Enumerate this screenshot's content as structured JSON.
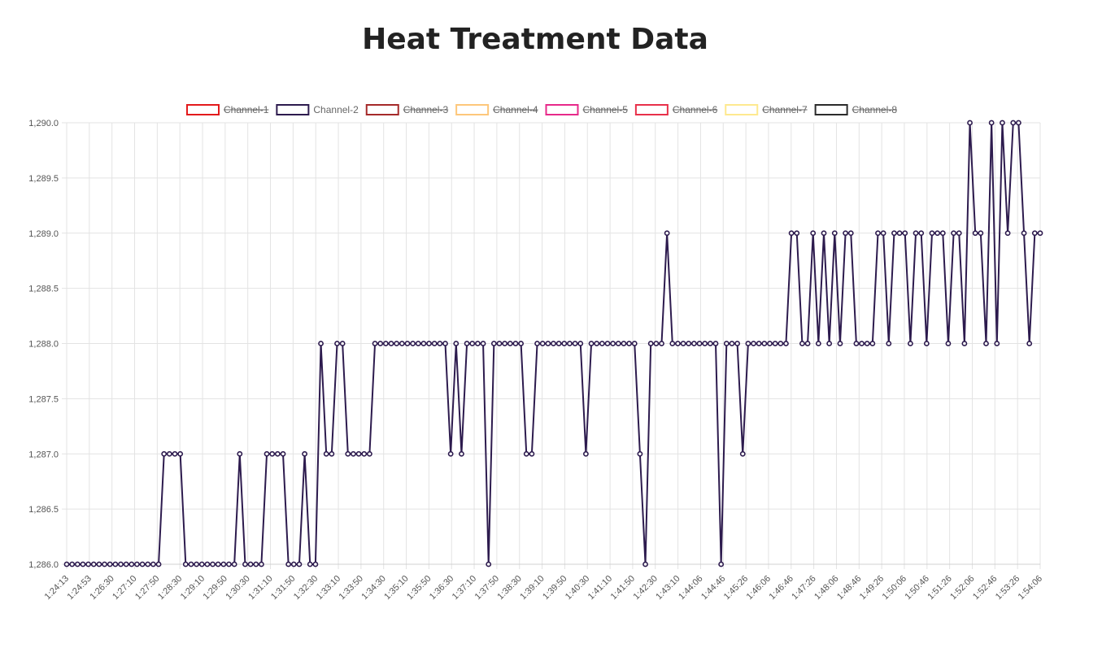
{
  "chart_data": {
    "type": "line",
    "title": "Heat Treatment Data",
    "xlabel": "",
    "ylabel": "",
    "ylim": [
      1286.0,
      1290.0
    ],
    "y_ticks": [
      "1,286.0",
      "1,286.5",
      "1,287.0",
      "1,287.5",
      "1,288.0",
      "1,288.5",
      "1,289.0",
      "1,289.5",
      "1,290.0"
    ],
    "x_tick_labels": [
      "1:24:13",
      "1:24:53",
      "1:26:30",
      "1:27:10",
      "1:27:50",
      "1:28:30",
      "1:29:10",
      "1:29:50",
      "1:30:30",
      "1:31:10",
      "1:31:50",
      "1:32:30",
      "1:33:10",
      "1:33:50",
      "1:34:30",
      "1:35:10",
      "1:35:50",
      "1:36:30",
      "1:37:10",
      "1:37:50",
      "1:38:30",
      "1:39:10",
      "1:39:50",
      "1:40:30",
      "1:41:10",
      "1:41:50",
      "1:42:30",
      "1:43:10",
      "1:44:06",
      "1:44:46",
      "1:45:26",
      "1:46:06",
      "1:46:46",
      "1:47:26",
      "1:48:06",
      "1:48:46",
      "1:49:26",
      "1:50:06",
      "1:50:46",
      "1:51:26",
      "1:52:06",
      "1:52:46",
      "1:53:26",
      "1:54:06"
    ],
    "grid": true,
    "legend_position": "top",
    "legend": [
      {
        "name": "Channel-1",
        "color": "#e31a1c",
        "hidden": true
      },
      {
        "name": "Channel-2",
        "color": "#2d1b4e",
        "hidden": false
      },
      {
        "name": "Channel-3",
        "color": "#a52a2a",
        "hidden": true
      },
      {
        "name": "Channel-4",
        "color": "#fdc77b",
        "hidden": true
      },
      {
        "name": "Channel-5",
        "color": "#e7298a",
        "hidden": true
      },
      {
        "name": "Channel-6",
        "color": "#e8304a",
        "hidden": true
      },
      {
        "name": "Channel-7",
        "color": "#fee98f",
        "hidden": true
      },
      {
        "name": "Channel-8",
        "color": "#2b2b2b",
        "hidden": true
      }
    ],
    "series": [
      {
        "name": "Channel-2",
        "color": "#2d1b4e",
        "values": [
          1286,
          1286,
          1286,
          1286,
          1286,
          1286,
          1286,
          1286,
          1286,
          1286,
          1286,
          1286,
          1286,
          1286,
          1286,
          1286,
          1286,
          1286,
          1287,
          1287,
          1287,
          1287,
          1286,
          1286,
          1286,
          1286,
          1286,
          1286,
          1286,
          1286,
          1286,
          1286,
          1287,
          1286,
          1286,
          1286,
          1286,
          1287,
          1287,
          1287,
          1287,
          1286,
          1286,
          1286,
          1287,
          1286,
          1286,
          1288,
          1287,
          1287,
          1288,
          1288,
          1287,
          1287,
          1287,
          1287,
          1287,
          1288,
          1288,
          1288,
          1288,
          1288,
          1288,
          1288,
          1288,
          1288,
          1288,
          1288,
          1288,
          1288,
          1288,
          1287,
          1288,
          1287,
          1288,
          1288,
          1288,
          1288,
          1286,
          1288,
          1288,
          1288,
          1288,
          1288,
          1288,
          1287,
          1287,
          1288,
          1288,
          1288,
          1288,
          1288,
          1288,
          1288,
          1288,
          1288,
          1287,
          1288,
          1288,
          1288,
          1288,
          1288,
          1288,
          1288,
          1288,
          1288,
          1287,
          1286,
          1288,
          1288,
          1288,
          1289,
          1288,
          1288,
          1288,
          1288,
          1288,
          1288,
          1288,
          1288,
          1288,
          1286,
          1288,
          1288,
          1288,
          1287,
          1288,
          1288,
          1288,
          1288,
          1288,
          1288,
          1288,
          1288,
          1289,
          1289,
          1288,
          1288,
          1289,
          1288,
          1289,
          1288,
          1289,
          1288,
          1289,
          1289,
          1288,
          1288,
          1288,
          1288,
          1289,
          1289,
          1288,
          1289,
          1289,
          1289,
          1288,
          1289,
          1289,
          1288,
          1289,
          1289,
          1289,
          1288,
          1289,
          1289,
          1288,
          1290,
          1289,
          1289,
          1288,
          1290,
          1288,
          1290,
          1289,
          1290,
          1290,
          1289,
          1288,
          1289,
          1289
        ]
      }
    ]
  }
}
